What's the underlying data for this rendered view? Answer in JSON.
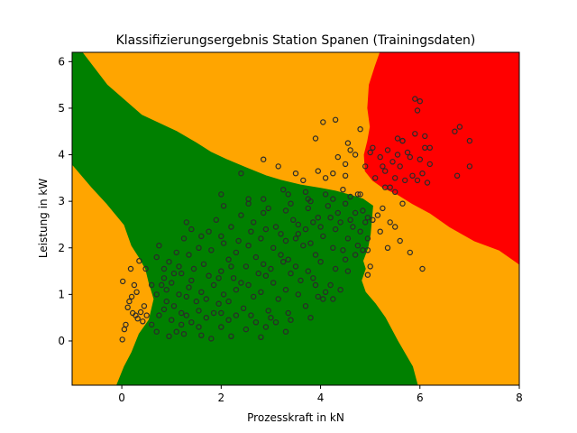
{
  "chart_data": {
    "type": "scatter",
    "title": "Klassifizierungsergebnis Station Spanen (Trainingsdaten)",
    "xlabel": "Prozesskraft in kN",
    "ylabel": "Leistung in kW",
    "xlim": [
      -1.0,
      8.0
    ],
    "ylim": [
      -0.95,
      6.2
    ],
    "x_ticks": [
      "0",
      "2",
      "4",
      "6",
      "8"
    ],
    "y_ticks": [
      "0",
      "1",
      "2",
      "3",
      "4",
      "5",
      "6"
    ],
    "grid": false,
    "legend": "none",
    "region_colors": {
      "class_mid": "#008000",
      "class_low_high": "#ffa500",
      "class_top": "#ff0000"
    },
    "regions": [
      {
        "class": "class_mid",
        "color": "#008000",
        "polygon": [
          [
            -1.0,
            6.2
          ],
          [
            -0.8,
            6.2
          ],
          [
            -0.3,
            5.5
          ],
          [
            0.4,
            4.85
          ],
          [
            1.1,
            4.5
          ],
          [
            1.5,
            4.25
          ],
          [
            1.8,
            4.05
          ],
          [
            2.1,
            3.9
          ],
          [
            2.5,
            3.72
          ],
          [
            2.9,
            3.55
          ],
          [
            3.2,
            3.45
          ],
          [
            3.6,
            3.35
          ],
          [
            4.0,
            3.28
          ],
          [
            4.3,
            3.22
          ],
          [
            4.6,
            3.13
          ],
          [
            4.85,
            3.05
          ],
          [
            5.05,
            2.9
          ],
          [
            5.0,
            2.3
          ],
          [
            4.95,
            2.0
          ],
          [
            4.85,
            1.72
          ],
          [
            4.9,
            1.55
          ],
          [
            4.82,
            1.3
          ],
          [
            4.9,
            1.05
          ],
          [
            5.1,
            0.8
          ],
          [
            5.3,
            0.5
          ],
          [
            5.55,
            0.0
          ],
          [
            5.85,
            -0.55
          ],
          [
            5.95,
            -0.95
          ],
          [
            -0.1,
            -0.95
          ],
          [
            0.05,
            -0.55
          ],
          [
            0.2,
            -0.25
          ],
          [
            0.35,
            0.15
          ],
          [
            0.55,
            0.45
          ],
          [
            0.65,
            0.9
          ],
          [
            0.55,
            1.25
          ],
          [
            0.48,
            1.55
          ],
          [
            0.35,
            1.8
          ],
          [
            0.2,
            2.05
          ],
          [
            0.05,
            2.5
          ],
          [
            -0.3,
            2.95
          ],
          [
            -0.6,
            3.3
          ],
          [
            -1.0,
            3.8
          ]
        ]
      },
      {
        "class": "class_top",
        "color": "#ff0000",
        "polygon": [
          [
            5.2,
            6.2
          ],
          [
            8.0,
            6.2
          ],
          [
            8.0,
            1.65
          ],
          [
            7.6,
            1.95
          ],
          [
            7.1,
            2.15
          ],
          [
            6.6,
            2.45
          ],
          [
            6.2,
            2.75
          ],
          [
            5.85,
            2.95
          ],
          [
            5.55,
            3.15
          ],
          [
            5.25,
            3.3
          ],
          [
            5.05,
            3.45
          ],
          [
            4.9,
            3.65
          ],
          [
            4.88,
            4.0
          ],
          [
            4.95,
            4.3
          ],
          [
            5.0,
            4.6
          ],
          [
            4.95,
            5.0
          ],
          [
            4.98,
            5.5
          ],
          [
            5.1,
            5.9
          ]
        ]
      }
    ],
    "points": [
      [
        0.01,
        0.03
      ],
      [
        0.05,
        0.25
      ],
      [
        0.08,
        0.35
      ],
      [
        0.12,
        0.72
      ],
      [
        0.15,
        0.85
      ],
      [
        0.2,
        0.95
      ],
      [
        0.28,
        0.55
      ],
      [
        0.32,
        0.48
      ],
      [
        0.38,
        0.62
      ],
      [
        0.42,
        0.42
      ],
      [
        0.45,
        0.75
      ],
      [
        0.5,
        0.55
      ],
      [
        0.3,
        1.05
      ],
      [
        0.25,
        1.2
      ],
      [
        0.18,
        1.55
      ],
      [
        0.35,
        1.72
      ],
      [
        0.02,
        1.28
      ],
      [
        0.6,
        1.2
      ],
      [
        0.48,
        1.55
      ],
      [
        0.22,
        0.6
      ],
      [
        0.6,
        0.35
      ],
      [
        0.75,
        0.55
      ],
      [
        0.85,
        0.68
      ],
      [
        1.0,
        0.45
      ],
      [
        1.1,
        0.2
      ],
      [
        1.2,
        0.35
      ],
      [
        1.3,
        0.55
      ],
      [
        1.4,
        0.4
      ],
      [
        1.55,
        0.3
      ],
      [
        1.7,
        0.5
      ],
      [
        1.85,
        0.6
      ],
      [
        2.0,
        0.3
      ],
      [
        2.15,
        0.45
      ],
      [
        2.3,
        0.55
      ],
      [
        2.5,
        0.25
      ],
      [
        2.7,
        0.4
      ],
      [
        2.9,
        0.3
      ],
      [
        3.1,
        0.4
      ],
      [
        0.7,
        0.2
      ],
      [
        0.95,
        0.1
      ],
      [
        1.25,
        0.15
      ],
      [
        1.6,
        0.12
      ],
      [
        1.8,
        0.05
      ],
      [
        2.2,
        0.1
      ],
      [
        2.8,
        0.08
      ],
      [
        3.3,
        0.2
      ],
      [
        1.05,
        0.75
      ],
      [
        1.5,
        0.85
      ],
      [
        1.95,
        0.8
      ],
      [
        2.45,
        0.7
      ],
      [
        2.95,
        0.65
      ],
      [
        3.35,
        0.6
      ],
      [
        3.7,
        0.75
      ],
      [
        4.05,
        0.9
      ],
      [
        4.25,
        0.9
      ],
      [
        0.7,
        1.0
      ],
      [
        0.9,
        1.1
      ],
      [
        1.15,
        1.0
      ],
      [
        1.35,
        1.15
      ],
      [
        1.6,
        1.05
      ],
      [
        1.85,
        1.2
      ],
      [
        2.05,
        1.0
      ],
      [
        2.3,
        1.1
      ],
      [
        2.55,
        1.2
      ],
      [
        2.8,
        1.05
      ],
      [
        3.05,
        1.25
      ],
      [
        3.3,
        1.1
      ],
      [
        3.6,
        1.3
      ],
      [
        3.9,
        1.2
      ],
      [
        4.1,
        1.05
      ],
      [
        0.85,
        1.35
      ],
      [
        1.2,
        1.45
      ],
      [
        1.45,
        1.55
      ],
      [
        1.75,
        1.4
      ],
      [
        2.0,
        1.5
      ],
      [
        2.25,
        1.35
      ],
      [
        2.5,
        1.6
      ],
      [
        2.75,
        1.45
      ],
      [
        3.0,
        1.55
      ],
      [
        3.25,
        1.7
      ],
      [
        3.5,
        1.6
      ],
      [
        3.75,
        1.5
      ],
      [
        4.0,
        1.7
      ],
      [
        4.3,
        1.55
      ],
      [
        4.5,
        1.75
      ],
      [
        0.7,
        1.8
      ],
      [
        0.95,
        1.7
      ],
      [
        1.1,
        1.9
      ],
      [
        1.35,
        1.85
      ],
      [
        1.55,
        2.0
      ],
      [
        1.8,
        1.95
      ],
      [
        2.05,
        2.1
      ],
      [
        2.3,
        1.9
      ],
      [
        2.55,
        2.05
      ],
      [
        2.8,
        2.2
      ],
      [
        3.05,
        2.0
      ],
      [
        3.3,
        2.15
      ],
      [
        3.55,
        2.3
      ],
      [
        3.8,
        2.1
      ],
      [
        4.05,
        2.25
      ],
      [
        4.3,
        2.4
      ],
      [
        4.55,
        2.2
      ],
      [
        4.8,
        2.35
      ],
      [
        0.75,
        2.05
      ],
      [
        1.25,
        2.2
      ],
      [
        1.75,
        2.35
      ],
      [
        2.2,
        2.45
      ],
      [
        2.65,
        2.55
      ],
      [
        3.1,
        2.45
      ],
      [
        3.45,
        2.6
      ],
      [
        3.85,
        2.55
      ],
      [
        4.2,
        2.65
      ],
      [
        4.6,
        2.6
      ],
      [
        4.9,
        2.55
      ],
      [
        1.3,
        2.55
      ],
      [
        1.9,
        2.6
      ],
      [
        2.4,
        2.7
      ],
      [
        2.85,
        2.75
      ],
      [
        3.3,
        2.8
      ],
      [
        3.75,
        2.85
      ],
      [
        4.15,
        2.9
      ],
      [
        4.5,
        2.95
      ],
      [
        4.85,
        2.8
      ],
      [
        2.05,
        2.9
      ],
      [
        2.55,
        2.95
      ],
      [
        2.95,
        2.85
      ],
      [
        3.4,
        2.95
      ],
      [
        3.8,
        3.0
      ],
      [
        4.25,
        3.05
      ],
      [
        4.6,
        3.1
      ],
      [
        4.8,
        3.15
      ],
      [
        3.55,
        2.5
      ],
      [
        3.95,
        2.65
      ],
      [
        4.35,
        2.75
      ],
      [
        4.65,
        2.45
      ],
      [
        4.75,
        2.05
      ],
      [
        4.95,
        2.2
      ],
      [
        4.7,
        1.85
      ],
      [
        4.45,
        1.95
      ],
      [
        3.65,
        2.05
      ],
      [
        3.2,
        1.85
      ],
      [
        2.7,
        1.8
      ],
      [
        2.15,
        1.75
      ],
      [
        1.65,
        1.65
      ],
      [
        1.15,
        1.6
      ],
      [
        0.85,
        1.55
      ],
      [
        1.0,
        1.25
      ],
      [
        1.4,
        1.3
      ],
      [
        1.95,
        1.35
      ],
      [
        2.4,
        1.25
      ],
      [
        2.9,
        1.4
      ],
      [
        3.4,
        1.45
      ],
      [
        3.85,
        1.35
      ],
      [
        4.2,
        1.2
      ],
      [
        4.55,
        1.5
      ],
      [
        0.9,
        0.85
      ],
      [
        1.3,
        0.95
      ],
      [
        1.7,
        0.9
      ],
      [
        2.15,
        0.85
      ],
      [
        2.65,
        0.95
      ],
      [
        3.15,
        0.9
      ],
      [
        3.55,
        1.0
      ],
      [
        3.95,
        0.95
      ],
      [
        4.4,
        1.1
      ],
      [
        1.4,
        2.4
      ],
      [
        1.6,
        2.25
      ],
      [
        2.0,
        2.25
      ],
      [
        2.35,
        2.15
      ],
      [
        2.6,
        2.35
      ],
      [
        2.9,
        2.4
      ],
      [
        3.2,
        2.3
      ],
      [
        3.5,
        2.2
      ],
      [
        3.7,
        2.4
      ],
      [
        4.0,
        2.45
      ],
      [
        4.4,
        2.55
      ],
      [
        4.7,
        2.75
      ],
      [
        4.95,
        2.65
      ],
      [
        4.85,
        1.95
      ],
      [
        1.2,
        0.6
      ],
      [
        1.55,
        0.65
      ],
      [
        2.0,
        0.6
      ],
      [
        2.6,
        0.55
      ],
      [
        3.0,
        0.5
      ],
      [
        3.4,
        0.45
      ],
      [
        3.8,
        0.5
      ],
      [
        0.8,
        1.2
      ],
      [
        1.05,
        1.45
      ],
      [
        2.2,
        1.6
      ],
      [
        2.85,
        1.65
      ],
      [
        3.35,
        1.75
      ],
      [
        3.9,
        1.85
      ],
      [
        4.25,
        2.0
      ],
      [
        2.0,
        3.15
      ],
      [
        2.55,
        3.05
      ],
      [
        2.85,
        3.05
      ],
      [
        3.25,
        3.25
      ],
      [
        3.35,
        3.15
      ],
      [
        3.7,
        3.2
      ],
      [
        4.1,
        3.15
      ],
      [
        4.45,
        3.25
      ],
      [
        4.75,
        3.15
      ],
      [
        2.4,
        3.6
      ],
      [
        2.85,
        3.9
      ],
      [
        3.15,
        3.75
      ],
      [
        3.5,
        3.6
      ],
      [
        3.65,
        3.45
      ],
      [
        3.95,
        3.65
      ],
      [
        4.25,
        3.6
      ],
      [
        4.5,
        3.8
      ],
      [
        4.7,
        4.0
      ],
      [
        3.9,
        4.35
      ],
      [
        4.05,
        4.7
      ],
      [
        4.3,
        4.75
      ],
      [
        4.55,
        4.25
      ],
      [
        4.8,
        4.55
      ],
      [
        4.6,
        4.1
      ],
      [
        4.9,
        3.75
      ],
      [
        5.0,
        4.05
      ],
      [
        4.35,
        3.95
      ],
      [
        4.1,
        3.5
      ],
      [
        3.75,
        3.05
      ],
      [
        4.5,
        3.55
      ],
      [
        5.1,
        3.5
      ],
      [
        5.3,
        3.65
      ],
      [
        5.45,
        3.85
      ],
      [
        5.55,
        4.0
      ],
      [
        5.65,
        4.3
      ],
      [
        5.75,
        4.05
      ],
      [
        5.9,
        4.45
      ],
      [
        6.0,
        3.9
      ],
      [
        6.1,
        4.15
      ],
      [
        5.3,
        3.3
      ],
      [
        5.5,
        3.2
      ],
      [
        5.7,
        3.45
      ],
      [
        5.85,
        3.55
      ],
      [
        6.05,
        3.6
      ],
      [
        6.2,
        3.8
      ],
      [
        5.2,
        3.95
      ],
      [
        5.35,
        4.1
      ],
      [
        5.5,
        3.5
      ],
      [
        5.05,
        4.15
      ],
      [
        5.95,
        3.45
      ],
      [
        6.15,
        3.4
      ],
      [
        5.25,
        3.75
      ],
      [
        5.4,
        3.3
      ],
      [
        5.6,
        3.75
      ],
      [
        5.8,
        3.95
      ],
      [
        5.95,
        4.95
      ],
      [
        6.0,
        5.15
      ],
      [
        5.9,
        5.2
      ],
      [
        6.7,
        4.5
      ],
      [
        6.8,
        4.6
      ],
      [
        7.0,
        4.3
      ],
      [
        6.75,
        3.55
      ],
      [
        7.0,
        3.75
      ],
      [
        6.1,
        4.4
      ],
      [
        5.55,
        4.35
      ],
      [
        6.2,
        4.15
      ],
      [
        5.65,
        4.3
      ],
      [
        5.05,
        2.6
      ],
      [
        5.15,
        2.7
      ],
      [
        5.25,
        2.85
      ],
      [
        5.4,
        2.55
      ],
      [
        5.5,
        2.45
      ],
      [
        5.65,
        2.95
      ],
      [
        5.8,
        1.9
      ],
      [
        6.05,
        1.55
      ],
      [
        5.35,
        2.0
      ],
      [
        5.2,
        2.35
      ],
      [
        5.6,
        2.15
      ],
      [
        5.0,
        1.6
      ],
      [
        4.95,
        1.42
      ],
      [
        4.95,
        1.95
      ]
    ]
  }
}
